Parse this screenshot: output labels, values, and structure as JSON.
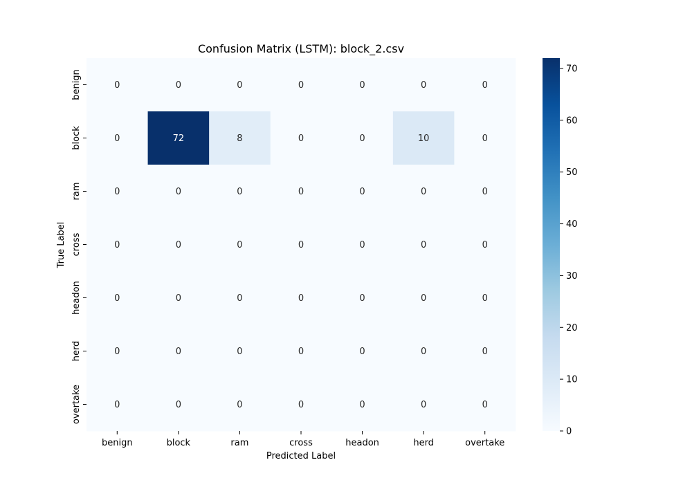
{
  "chart_data": {
    "type": "heatmap",
    "title": "Confusion Matrix (LSTM): block_2.csv",
    "xlabel": "Predicted Label",
    "ylabel": "True Label",
    "x_categories": [
      "benign",
      "block",
      "ram",
      "cross",
      "headon",
      "herd",
      "overtake"
    ],
    "y_categories": [
      "benign",
      "block",
      "ram",
      "cross",
      "headon",
      "herd",
      "overtake"
    ],
    "values": [
      [
        0,
        0,
        0,
        0,
        0,
        0,
        0
      ],
      [
        0,
        72,
        8,
        0,
        0,
        10,
        0
      ],
      [
        0,
        0,
        0,
        0,
        0,
        0,
        0
      ],
      [
        0,
        0,
        0,
        0,
        0,
        0,
        0
      ],
      [
        0,
        0,
        0,
        0,
        0,
        0,
        0
      ],
      [
        0,
        0,
        0,
        0,
        0,
        0,
        0
      ],
      [
        0,
        0,
        0,
        0,
        0,
        0,
        0
      ]
    ],
    "colormap": "Blues",
    "colorbar": {
      "range": [
        0,
        72
      ],
      "ticks": [
        0,
        10,
        20,
        30,
        40,
        50,
        60,
        70
      ]
    },
    "colors": {
      "low": "#f7fbff",
      "high": "#08306b",
      "annotation_dark": "#262626",
      "annotation_light": "#ffffff"
    }
  }
}
